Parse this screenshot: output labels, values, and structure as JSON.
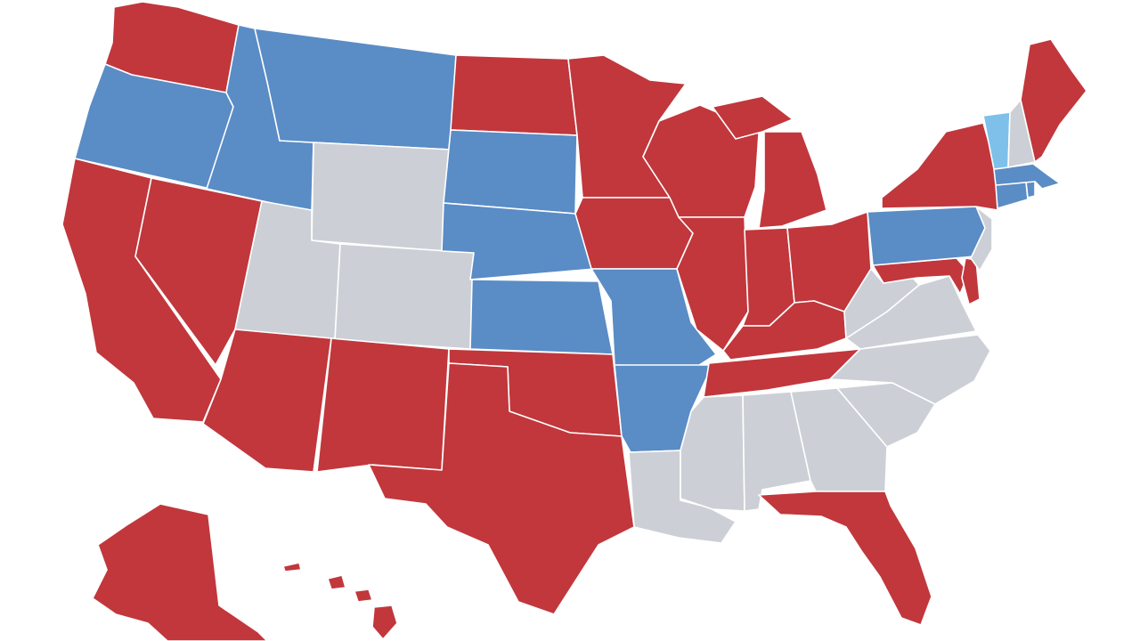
{
  "palette": {
    "red": "#c1373c",
    "blue": "#5a8cc6",
    "light_blue": "#7fc0ea",
    "gray": "#ccd0d6",
    "border": "#ffffff",
    "background": "#ffffff"
  },
  "map": {
    "type": "choropleth",
    "region": "United States",
    "states": [
      {
        "state": "Washington",
        "color": "red"
      },
      {
        "state": "Oregon",
        "color": "blue"
      },
      {
        "state": "California",
        "color": "red"
      },
      {
        "state": "Nevada",
        "color": "red"
      },
      {
        "state": "Idaho",
        "color": "blue"
      },
      {
        "state": "Montana",
        "color": "blue"
      },
      {
        "state": "Wyoming",
        "color": "gray"
      },
      {
        "state": "Utah",
        "color": "gray"
      },
      {
        "state": "Colorado",
        "color": "gray"
      },
      {
        "state": "Arizona",
        "color": "red"
      },
      {
        "state": "New Mexico",
        "color": "red"
      },
      {
        "state": "North Dakota",
        "color": "red"
      },
      {
        "state": "South Dakota",
        "color": "blue"
      },
      {
        "state": "Nebraska",
        "color": "blue"
      },
      {
        "state": "Kansas",
        "color": "blue"
      },
      {
        "state": "Oklahoma",
        "color": "red"
      },
      {
        "state": "Texas",
        "color": "red"
      },
      {
        "state": "Minnesota",
        "color": "red"
      },
      {
        "state": "Iowa",
        "color": "red"
      },
      {
        "state": "Missouri",
        "color": "blue"
      },
      {
        "state": "Arkansas",
        "color": "blue"
      },
      {
        "state": "Louisiana",
        "color": "gray"
      },
      {
        "state": "Wisconsin",
        "color": "red"
      },
      {
        "state": "Illinois",
        "color": "red"
      },
      {
        "state": "Michigan",
        "color": "red"
      },
      {
        "state": "Indiana",
        "color": "red"
      },
      {
        "state": "Ohio",
        "color": "red"
      },
      {
        "state": "Kentucky",
        "color": "red"
      },
      {
        "state": "Tennessee",
        "color": "red"
      },
      {
        "state": "Mississippi",
        "color": "gray"
      },
      {
        "state": "Alabama",
        "color": "gray"
      },
      {
        "state": "Georgia",
        "color": "gray"
      },
      {
        "state": "Florida",
        "color": "red"
      },
      {
        "state": "South Carolina",
        "color": "gray"
      },
      {
        "state": "North Carolina",
        "color": "gray"
      },
      {
        "state": "Virginia",
        "color": "gray"
      },
      {
        "state": "West Virginia",
        "color": "gray"
      },
      {
        "state": "Maryland",
        "color": "red"
      },
      {
        "state": "Delaware",
        "color": "red"
      },
      {
        "state": "Pennsylvania",
        "color": "blue"
      },
      {
        "state": "New Jersey",
        "color": "gray"
      },
      {
        "state": "New York",
        "color": "red"
      },
      {
        "state": "Connecticut",
        "color": "blue"
      },
      {
        "state": "Rhode Island",
        "color": "blue"
      },
      {
        "state": "Massachusetts",
        "color": "blue"
      },
      {
        "state": "Vermont",
        "color": "light_blue"
      },
      {
        "state": "New Hampshire",
        "color": "gray"
      },
      {
        "state": "Maine",
        "color": "red"
      },
      {
        "state": "Alaska",
        "color": "red"
      },
      {
        "state": "Hawaii",
        "color": "red"
      }
    ]
  }
}
